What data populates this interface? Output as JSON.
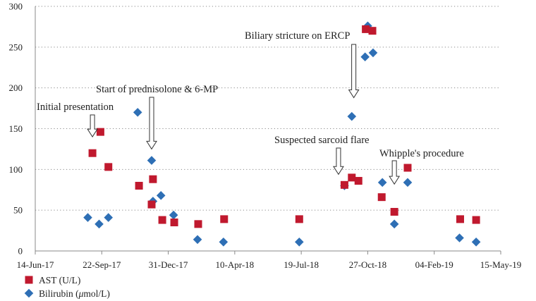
{
  "chart_data": {
    "type": "scatter",
    "x_axis": {
      "type": "date",
      "range": [
        "2017-06-14",
        "2019-05-15"
      ],
      "ticks": [
        {
          "date": "2017-06-14",
          "label": "14-Jun-17"
        },
        {
          "date": "2017-09-22",
          "label": "22-Sep-17"
        },
        {
          "date": "2017-12-31",
          "label": "31-Dec-17"
        },
        {
          "date": "2018-04-10",
          "label": "10-Apr-18"
        },
        {
          "date": "2018-07-19",
          "label": "19-Jul-18"
        },
        {
          "date": "2018-10-27",
          "label": "27-Oct-18"
        },
        {
          "date": "2019-02-04",
          "label": "04-Feb-19"
        },
        {
          "date": "2019-05-15",
          "label": "15-May-19"
        }
      ]
    },
    "y_axis": {
      "range": [
        0,
        300
      ],
      "ticks": [
        0,
        50,
        100,
        150,
        200,
        250,
        300
      ],
      "gridlines": true,
      "gridline_style": "dotted"
    },
    "legend": {
      "placement": "bottom-left",
      "items": [
        {
          "label": "AST (U/L)",
          "marker": "square",
          "color": "#c0192e"
        },
        {
          "label": "Bilirubin (",
          "label_italic": "μ",
          "label_tail": "mol/L)",
          "marker": "diamond",
          "color": "#2e6fb5"
        }
      ]
    },
    "series": [
      {
        "name": "AST (U/L)",
        "marker": "square",
        "color": "#c0192e",
        "points": [
          {
            "x": "2017-09-08",
            "y": 120
          },
          {
            "x": "2017-09-20",
            "y": 146
          },
          {
            "x": "2017-10-02",
            "y": 103
          },
          {
            "x": "2017-11-17",
            "y": 80
          },
          {
            "x": "2017-12-06",
            "y": 57
          },
          {
            "x": "2017-12-08",
            "y": 88
          },
          {
            "x": "2017-12-22",
            "y": 38
          },
          {
            "x": "2018-01-09",
            "y": 35
          },
          {
            "x": "2018-02-14",
            "y": 33
          },
          {
            "x": "2018-03-25",
            "y": 39
          },
          {
            "x": "2018-07-16",
            "y": 39
          },
          {
            "x": "2018-09-22",
            "y": 81
          },
          {
            "x": "2018-10-03",
            "y": 90
          },
          {
            "x": "2018-10-13",
            "y": 86
          },
          {
            "x": "2018-10-24",
            "y": 272
          },
          {
            "x": "2018-11-03",
            "y": 270
          },
          {
            "x": "2018-11-17",
            "y": 66
          },
          {
            "x": "2018-12-06",
            "y": 48
          },
          {
            "x": "2018-12-26",
            "y": 102
          },
          {
            "x": "2019-03-15",
            "y": 39
          },
          {
            "x": "2019-04-08",
            "y": 38
          }
        ]
      },
      {
        "name": "Bilirubin (μmol/L)",
        "marker": "diamond",
        "color": "#2e6fb5",
        "points": [
          {
            "x": "2017-09-01",
            "y": 41
          },
          {
            "x": "2017-09-18",
            "y": 33
          },
          {
            "x": "2017-10-02",
            "y": 41
          },
          {
            "x": "2017-11-15",
            "y": 170
          },
          {
            "x": "2017-12-06",
            "y": 111
          },
          {
            "x": "2017-12-08",
            "y": 61
          },
          {
            "x": "2017-12-20",
            "y": 68
          },
          {
            "x": "2018-01-08",
            "y": 44
          },
          {
            "x": "2018-02-13",
            "y": 14
          },
          {
            "x": "2018-03-24",
            "y": 11
          },
          {
            "x": "2018-07-16",
            "y": 11
          },
          {
            "x": "2018-09-22",
            "y": 80
          },
          {
            "x": "2018-10-03",
            "y": 165
          },
          {
            "x": "2018-10-23",
            "y": 238
          },
          {
            "x": "2018-10-27",
            "y": 276
          },
          {
            "x": "2018-11-04",
            "y": 243
          },
          {
            "x": "2018-11-18",
            "y": 84
          },
          {
            "x": "2018-12-06",
            "y": 33
          },
          {
            "x": "2018-12-26",
            "y": 84
          },
          {
            "x": "2019-03-14",
            "y": 16
          },
          {
            "x": "2019-04-08",
            "y": 11
          }
        ]
      }
    ],
    "annotations": [
      {
        "id": "initial",
        "text": "Initial presentation",
        "x": "2017-09-08",
        "y": 140
      },
      {
        "id": "pred",
        "text": "Start of prednisolone & 6-MP",
        "x": "2017-12-06",
        "y": 125
      },
      {
        "id": "ercp",
        "text": "Biliary stricture on ERCP",
        "x": "2018-10-06",
        "y": 188
      },
      {
        "id": "sarcoid",
        "text": "Suspected sarcoid flare",
        "x": "2018-09-13",
        "y": 94
      },
      {
        "id": "whipple",
        "text": "Whipple's procedure",
        "x": "2018-12-06",
        "y": 82
      }
    ]
  }
}
